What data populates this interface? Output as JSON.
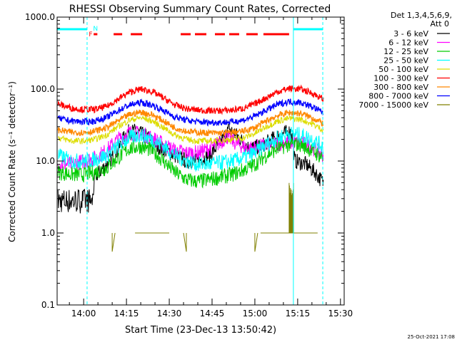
{
  "chart_data": {
    "type": "line",
    "title": "RHESSI Observing Summary Count Rates, Corrected",
    "ylabel": "Corrected Count Rate (s⁻¹ detector⁻¹)",
    "xlabel": "Start Time (23-Dec-13 13:50:42)",
    "y_scale": "log",
    "ylim": [
      0.1,
      1000
    ],
    "xlim_minutes": [
      830.7,
      931.3
    ],
    "y_ticks": [
      {
        "v": 0.1,
        "label": "0.1"
      },
      {
        "v": 1,
        "label": "1.0"
      },
      {
        "v": 10,
        "label": "10.0"
      },
      {
        "v": 100,
        "label": "100.0"
      },
      {
        "v": 1000,
        "label": "1000.0"
      }
    ],
    "x_ticks": [
      {
        "m": 840,
        "label": "14:00"
      },
      {
        "m": 855,
        "label": "14:15"
      },
      {
        "m": 870,
        "label": "14:30"
      },
      {
        "m": 885,
        "label": "14:45"
      },
      {
        "m": 900,
        "label": "15:00"
      },
      {
        "m": 915,
        "label": "15:15"
      },
      {
        "m": 930,
        "label": "15:30"
      }
    ],
    "legend_header": [
      "Det 1,3,4,5,6,9,",
      "Att 0"
    ],
    "legend_placement": "right",
    "series": [
      {
        "name": "3 - 6 keV",
        "color": "#000000",
        "x": [
          831,
          843,
          844,
          848,
          852,
          855,
          858,
          862,
          866,
          872,
          876,
          880,
          884,
          888,
          891,
          894,
          898,
          902,
          906,
          910,
          912.8,
          914,
          918,
          921,
          924
        ],
        "y": [
          2.8,
          2.8,
          6,
          9,
          14,
          25,
          26,
          22,
          16,
          12,
          10,
          10,
          12,
          18,
          28,
          22,
          15,
          16,
          20,
          24,
          26,
          10,
          9,
          7,
          5
        ]
      },
      {
        "name": "6 - 12 keV",
        "color": "#ff00ff",
        "x": [
          831,
          836,
          840,
          844,
          848,
          852,
          856,
          860,
          864,
          868,
          872,
          876,
          880,
          884,
          888,
          890,
          894,
          898,
          902,
          906,
          910,
          914,
          918,
          922,
          924
        ],
        "y": [
          9,
          9,
          10,
          11,
          14,
          20,
          25,
          24,
          21,
          17,
          14,
          13,
          13,
          15,
          18,
          22,
          17,
          15,
          16,
          17,
          18,
          18,
          17,
          14,
          12
        ]
      },
      {
        "name": "12 - 25 keV",
        "color": "#00cc00",
        "x": [
          831,
          836,
          840,
          844,
          848,
          852,
          856,
          860,
          864,
          868,
          872,
          876,
          880,
          884,
          888,
          892,
          896,
          900,
          904,
          908,
          912,
          916,
          920,
          924
        ],
        "y": [
          7,
          6.5,
          6.5,
          7,
          8,
          11,
          15,
          16,
          14,
          10,
          7,
          5.5,
          5.2,
          5.5,
          6,
          6.5,
          7.5,
          9,
          12,
          15,
          17,
          17,
          14,
          11
        ]
      },
      {
        "name": "25 - 50 keV",
        "color": "#00ffff",
        "x": [
          831,
          836,
          840,
          844,
          848,
          852,
          856,
          860,
          864,
          868,
          872,
          876,
          880,
          884,
          888,
          892,
          896,
          900,
          904,
          908,
          912,
          916,
          920,
          924
        ],
        "y": [
          12,
          10,
          10,
          10.5,
          12,
          16,
          21,
          23,
          20,
          16,
          12,
          10,
          9,
          9,
          9.5,
          10,
          11,
          13,
          17,
          21,
          24,
          23,
          20,
          16
        ]
      },
      {
        "name": "50 - 100 keV",
        "color": "#dddd00",
        "x": [
          831,
          836,
          840,
          844,
          848,
          852,
          856,
          860,
          864,
          868,
          872,
          876,
          880,
          884,
          888,
          892,
          896,
          900,
          904,
          908,
          912,
          916,
          920,
          924
        ],
        "y": [
          21,
          19,
          19,
          20,
          23,
          30,
          37,
          40,
          36,
          29,
          23,
          20,
          19,
          19,
          19.5,
          20,
          21,
          24,
          30,
          36,
          39,
          38,
          33,
          27
        ]
      },
      {
        "name": "100 - 300 keV",
        "color": "#ff0000",
        "x": [
          831,
          836,
          840,
          844,
          848,
          852,
          856,
          860,
          864,
          868,
          872,
          876,
          880,
          884,
          888,
          892,
          896,
          900,
          904,
          908,
          912,
          916,
          920,
          924
        ],
        "y": [
          62,
          54,
          52,
          52,
          57,
          72,
          90,
          100,
          92,
          75,
          60,
          53,
          51,
          50,
          50,
          51,
          54,
          62,
          76,
          92,
          102,
          100,
          88,
          72
        ]
      },
      {
        "name": "300 - 800 keV",
        "color": "#ff8800",
        "x": [
          831,
          836,
          840,
          844,
          848,
          852,
          856,
          860,
          864,
          868,
          872,
          876,
          880,
          884,
          888,
          892,
          896,
          900,
          904,
          908,
          912,
          916,
          920,
          924
        ],
        "y": [
          27,
          25,
          25,
          26,
          29,
          36,
          44,
          48,
          44,
          36,
          29,
          26,
          25,
          24.5,
          24.5,
          25,
          26,
          29,
          36,
          43,
          47,
          46,
          40,
          33
        ]
      },
      {
        "name": "800 - 7000 keV",
        "color": "#0000ff",
        "x": [
          831,
          836,
          840,
          844,
          848,
          852,
          856,
          860,
          864,
          868,
          872,
          876,
          880,
          884,
          888,
          892,
          896,
          900,
          904,
          908,
          912,
          916,
          920,
          924
        ],
        "y": [
          39,
          36,
          35,
          36,
          40,
          50,
          60,
          65,
          60,
          50,
          41,
          37,
          35,
          34.5,
          34.5,
          35,
          37,
          42,
          51,
          61,
          67,
          65,
          57,
          47
        ]
      },
      {
        "name": "7000 - 15000 keV",
        "color": "#808000",
        "x": [
          848,
          850,
          850,
          851,
          851,
          858,
          862,
          870,
          875,
          875,
          876,
          876,
          877,
          878,
          888,
          898,
          900,
          900,
          901,
          901,
          902,
          903,
          910,
          922
        ],
        "y": [
          null,
          1.0,
          0.55,
          1.0,
          null,
          1.0,
          1.0,
          1.0,
          null,
          1.0,
          0.55,
          1.0,
          null,
          1.0,
          null,
          null,
          1.0,
          0.55,
          1.0,
          null,
          1.0,
          1.0,
          1.0,
          1.0
        ]
      }
    ],
    "annotations": [
      {
        "text": "N",
        "color": "#00ffff"
      },
      {
        "text": "F",
        "color": "#ff0000"
      }
    ],
    "flag_bars": {
      "night_color": "#00ffff",
      "flare_color": "#ff0000",
      "night": [
        [
          830.7,
          841.2
        ],
        [
          913.5,
          923.8
        ]
      ],
      "flare": [
        [
          843.5,
          844.8
        ],
        [
          850.5,
          853.5
        ],
        [
          856.5,
          860.5
        ],
        [
          874.0,
          877.5
        ],
        [
          879.0,
          883.0
        ],
        [
          886.0,
          889.5
        ],
        [
          891.0,
          894.5
        ],
        [
          897.0,
          901.0
        ],
        [
          903.0,
          912.0
        ]
      ],
      "vlines_solid": [
        830.7,
        913.5
      ],
      "vlines_dashed": [
        841.2,
        923.8
      ]
    }
  },
  "footer": {
    "timestamp": "25-Oct-2021 17:08"
  }
}
